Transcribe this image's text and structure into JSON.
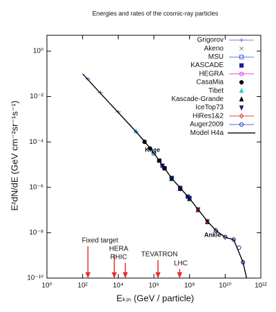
{
  "chart_data": {
    "type": "scatter",
    "title": "Energies and rates of the cosmic-ray particles",
    "x_label": "Eₖᵢₙ  (GeV / particle)",
    "y_label": "E²dN/dE  (GeV cm⁻²sr⁻¹s⁻¹)",
    "log_x": true,
    "log_y": true,
    "xlim": [
      1,
      1000000000000.0
    ],
    "ylim": [
      1e-10,
      5
    ],
    "xticks": [
      {
        "value": 1,
        "label": "10⁰"
      },
      {
        "value": 100,
        "label": "10²"
      },
      {
        "value": 10000,
        "label": "10⁴"
      },
      {
        "value": 1000000,
        "label": "10⁶"
      },
      {
        "value": 100000000,
        "label": "10⁸"
      },
      {
        "value": 10000000000,
        "label": "10¹⁰"
      },
      {
        "value": 1000000000000,
        "label": "10¹²"
      }
    ],
    "yticks": [
      {
        "value": 1e-10,
        "label": "10⁻¹⁰"
      },
      {
        "value": 1e-08,
        "label": "10⁻⁸"
      },
      {
        "value": 1e-06,
        "label": "10⁻⁶"
      },
      {
        "value": 0.0001,
        "label": "10⁻⁴"
      },
      {
        "value": 0.01,
        "label": "10⁻²"
      },
      {
        "value": 1,
        "label": "10⁰"
      }
    ],
    "legend": "upper right",
    "series": [
      {
        "name": "Grigorov",
        "color": "#5555cc",
        "marker": "plus",
        "x": [
          200,
          1000,
          10000,
          100000
        ],
        "values": [
          0.06,
          0.015,
          0.0021,
          0.00028
        ]
      },
      {
        "name": "Akeno",
        "color": "#888888",
        "marker": "x",
        "x": [
          3000000,
          10000000,
          30000000,
          100000000,
          300000000,
          1000000000
        ],
        "values": [
          9e-06,
          2.5e-06,
          9e-07,
          3e-07,
          1e-07,
          3e-08
        ]
      },
      {
        "name": "MSU",
        "color": "#3355dd",
        "marker": "square-open",
        "x": [
          1000000,
          3000000,
          10000000,
          30000000,
          100000000
        ],
        "values": [
          3.3e-05,
          9e-06,
          2.6e-06,
          9.5e-07,
          3.4e-07
        ]
      },
      {
        "name": "KASCADE",
        "color": "#1a1a99",
        "marker": "square",
        "x": [
          1000000,
          2000000,
          4000000,
          10000000,
          30000000,
          80000000
        ],
        "values": [
          3.2e-05,
          1.5e-05,
          6.9e-06,
          2.5e-06,
          9e-07,
          3.9e-07
        ]
      },
      {
        "name": "HEGRA",
        "color": "#dd33dd",
        "marker": "circle-open",
        "x": [
          300000,
          1000000,
          3000000
        ],
        "values": [
          0.000105,
          3.2e-05,
          9.3e-06
        ]
      },
      {
        "name": "CasaMia",
        "color": "#000000",
        "marker": "circle",
        "x": [
          300000,
          600000,
          1000000,
          2000000,
          4000000
        ],
        "values": [
          0.0001,
          5.2e-05,
          3.2e-05,
          1.5e-05,
          6.9e-06
        ]
      },
      {
        "name": "Tibet",
        "color": "#33cccc",
        "marker": "triangle",
        "x": [
          100000,
          1000000,
          10000000,
          100000000
        ],
        "values": [
          0.0003,
          3.3e-05,
          2.6e-06,
          3.3e-07
        ]
      },
      {
        "name": "Kascade-Grande",
        "color": "#000000",
        "marker": "triangle",
        "x": [
          10000000,
          30000000,
          100000000,
          300000000,
          1000000000
        ],
        "values": [
          2.4e-06,
          8.7e-07,
          3.1e-07,
          1e-07,
          3e-08
        ]
      },
      {
        "name": "IceTop73",
        "color": "#112266",
        "marker": "triangle-down",
        "x": [
          3000000,
          10000000,
          30000000,
          100000000,
          300000000,
          1000000000
        ],
        "values": [
          8.7e-06,
          2.4e-06,
          8.8e-07,
          3.2e-07,
          1.05e-07,
          3.1e-08
        ]
      },
      {
        "name": "HiRes1&2",
        "color": "#dd3333",
        "marker": "diamond-open",
        "x": [
          300000000,
          1000000000,
          3000000000,
          10000000000,
          30000000000,
          100000000000
        ],
        "values": [
          1e-07,
          3.2e-08,
          1.3e-08,
          6.3e-09,
          5e-09,
          5e-10
        ]
      },
      {
        "name": "Auger2009",
        "color": "#2233cc",
        "marker": "circle-open",
        "x": [
          3000000000,
          10000000000,
          30000000000,
          60000000000,
          100000000000
        ],
        "values": [
          1.2e-08,
          6.5e-09,
          5e-09,
          2.2e-09,
          5e-10
        ]
      },
      {
        "name": "Model H4a",
        "color": "#000000",
        "marker": "line",
        "x": [
          100,
          1000,
          10000,
          100000,
          300000,
          1000000,
          10000000,
          100000000,
          1000000000,
          3000000000,
          10000000000,
          30000000000,
          100000000000,
          160000000000
        ],
        "values": [
          0.1,
          0.014,
          0.002,
          0.00028,
          0.000105,
          3.2e-05,
          2.5e-06,
          3.2e-07,
          3.2e-08,
          1.26e-08,
          6.3e-09,
          5e-09,
          5e-10,
          1e-10
        ]
      }
    ],
    "annotations": [
      "Knee",
      "Ankle"
    ],
    "accelerators": [
      {
        "label": "Fixed target",
        "x": 200
      },
      {
        "label": "HERA",
        "x": 6000
      },
      {
        "label": "RHIC",
        "x": 25000
      },
      {
        "label": "TEVATRON",
        "x": 1700000
      },
      {
        "label": "LHC",
        "x": 28000000
      }
    ],
    "accelerator_color": "#e03030"
  }
}
